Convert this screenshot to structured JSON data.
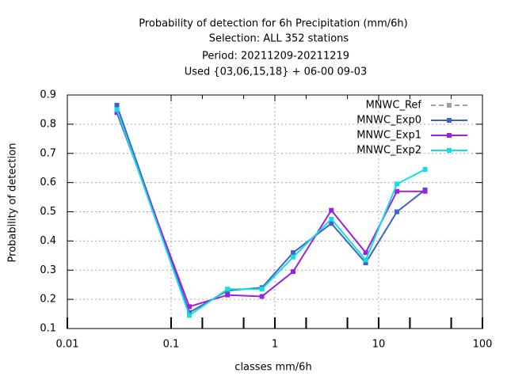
{
  "chart_data": {
    "type": "line",
    "title": [
      "Probability of detection  for 6h Precipitation (mm/6h)",
      "Selection: ALL    352 stations",
      "Period: 20211209-20211219",
      "Used {03,06,15,18} + 06-00 09-03"
    ],
    "x_label": "classes mm/6h",
    "y_label": "Probability of detection",
    "x": [
      0.03,
      0.15,
      0.35,
      0.75,
      1.5,
      3.5,
      7.5,
      15,
      28
    ],
    "x_log": true,
    "xlim": [
      0.01,
      100
    ],
    "xticks": [
      0.01,
      0.1,
      1,
      10,
      100
    ],
    "xminorticks": [
      0.2,
      0.5,
      2,
      5,
      20,
      50
    ],
    "ylim": [
      0.1,
      0.9
    ],
    "yticks": [
      0.1,
      0.2,
      0.3,
      0.4,
      0.5,
      0.6,
      0.7,
      0.8,
      0.9
    ],
    "grid": true,
    "legend": "upper right",
    "series": [
      {
        "name": "MNWC_Ref",
        "color": "#a0a0a0",
        "dashed": true,
        "values": [
          null,
          null,
          null,
          null,
          null,
          null,
          null,
          null,
          null
        ]
      },
      {
        "name": "MNWC_Exp0",
        "color": "#3b63c9",
        "values": [
          0.865,
          0.155,
          0.23,
          0.24,
          0.36,
          0.46,
          0.325,
          0.5,
          0.575
        ]
      },
      {
        "name": "MNWC_Exp1",
        "color": "#a020e0",
        "values": [
          0.84,
          0.175,
          0.215,
          0.21,
          0.295,
          0.505,
          0.36,
          0.57,
          0.57
        ]
      },
      {
        "name": "MNWC_Exp2",
        "color": "#10e0e0",
        "values": [
          0.85,
          0.145,
          0.235,
          0.235,
          0.345,
          0.475,
          0.335,
          0.595,
          0.645
        ]
      }
    ]
  }
}
